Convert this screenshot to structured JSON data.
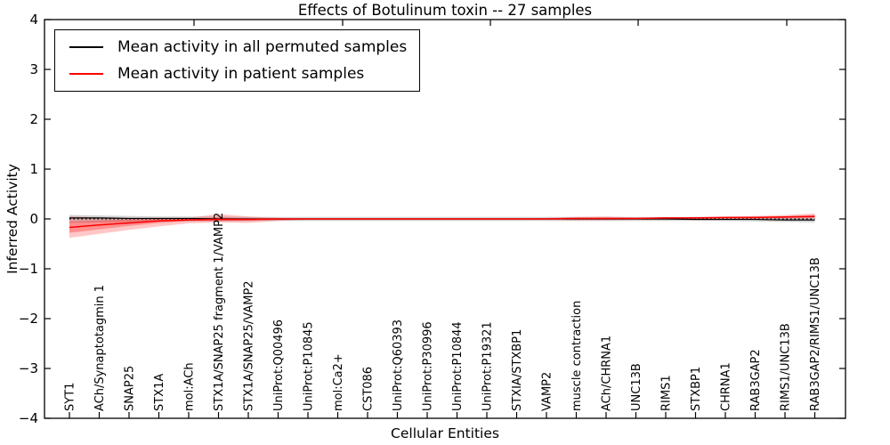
{
  "chart_data": {
    "type": "line",
    "title": "Effects of Botulinum toxin -- 27 samples",
    "xlabel": "Cellular Entities",
    "ylabel": "Inferred Activity",
    "ylim": [
      -4,
      4
    ],
    "yticks": [
      4,
      3,
      2,
      1,
      0,
      -1,
      -2,
      -3,
      -4
    ],
    "grid": false,
    "legend_position": "upper left",
    "categories": [
      "SYT1",
      "ACh/Synaptotagmin 1",
      "SNAP25",
      "STX1A",
      "mol:ACh",
      "STX1A/SNAP25 fragment 1/VAMP2",
      "STX1A/SNAP25/VAMP2",
      "UniProt:Q00496",
      "UniProt:P10845",
      "mol:Ca2+",
      "CST086",
      "UniProt:Q60393",
      "UniProt:P30996",
      "UniProt:P10844",
      "UniProt:P19321",
      "STXIA/STXBP1",
      "VAMP2",
      "muscle contraction",
      "ACh/CHRNA1",
      "UNC13B",
      "RIMS1",
      "STXBP1",
      "CHRNA1",
      "RAB3GAP2",
      "RIMS1/UNC13B",
      "RAB3GAP2/RIMS1/UNC13B"
    ],
    "series": [
      {
        "name": "Mean activity in all permuted samples",
        "color": "#000000",
        "style": "solid",
        "values": [
          0.02,
          0.02,
          0.01,
          0.01,
          0.01,
          0.0,
          0.0,
          0.0,
          0.0,
          0.0,
          0.0,
          0.0,
          0.0,
          0.0,
          0.0,
          0.0,
          0.0,
          0.0,
          0.0,
          0.0,
          0.0,
          -0.01,
          -0.01,
          -0.01,
          -0.02,
          -0.02
        ]
      },
      {
        "name": "Mean activity in patient samples",
        "color": "#ff0000",
        "style": "solid",
        "values": [
          -0.17,
          -0.12,
          -0.08,
          -0.04,
          -0.02,
          -0.01,
          -0.01,
          0.0,
          0.0,
          0.0,
          0.0,
          0.0,
          0.0,
          0.0,
          0.0,
          0.0,
          0.0,
          0.01,
          0.01,
          0.01,
          0.02,
          0.02,
          0.03,
          0.03,
          0.04,
          0.05
        ]
      },
      {
        "name": "zero-reference-line",
        "color": "#000000",
        "style": "dotted",
        "values": [
          0,
          0,
          0,
          0,
          0,
          0,
          0,
          0,
          0,
          0,
          0,
          0,
          0,
          0,
          0,
          0,
          0,
          0,
          0,
          0,
          0,
          0,
          0,
          0,
          0,
          0
        ]
      }
    ],
    "bands": [
      {
        "name": "permuted-samples-band",
        "color": "rgba(110,110,110,0.30)",
        "upper": [
          0.08,
          0.07,
          0.06,
          0.05,
          0.05,
          0.05,
          0.04,
          0.04,
          0.04,
          0.04,
          0.04,
          0.04,
          0.04,
          0.04,
          0.04,
          0.04,
          0.04,
          0.04,
          0.04,
          0.04,
          0.04,
          0.04,
          0.04,
          0.05,
          0.05,
          0.05
        ],
        "lower": [
          -0.08,
          -0.07,
          -0.06,
          -0.05,
          -0.05,
          -0.05,
          -0.04,
          -0.04,
          -0.04,
          -0.04,
          -0.04,
          -0.04,
          -0.04,
          -0.04,
          -0.04,
          -0.04,
          -0.04,
          -0.04,
          -0.04,
          -0.04,
          -0.04,
          -0.04,
          -0.04,
          -0.05,
          -0.06,
          -0.07
        ],
        "n_samples": 27
      },
      {
        "name": "patient-samples-band-outer",
        "color": "rgba(255,0,0,0.22)",
        "upper": [
          0.05,
          0.03,
          0.02,
          0.02,
          0.02,
          0.1,
          0.05,
          0.02,
          0.01,
          0.01,
          0.01,
          0.01,
          0.01,
          0.01,
          0.01,
          0.01,
          0.02,
          0.04,
          0.05,
          0.03,
          0.03,
          0.04,
          0.05,
          0.06,
          0.08,
          0.11
        ],
        "lower": [
          -0.38,
          -0.3,
          -0.22,
          -0.15,
          -0.09,
          -0.07,
          -0.08,
          -0.04,
          -0.02,
          -0.02,
          -0.02,
          -0.02,
          -0.02,
          -0.02,
          -0.02,
          -0.02,
          -0.02,
          -0.03,
          -0.03,
          -0.02,
          -0.02,
          -0.01,
          -0.01,
          0.0,
          0.0,
          0.01
        ]
      },
      {
        "name": "patient-samples-band-inner",
        "color": "rgba(255,0,0,0.28)",
        "upper": [
          -0.05,
          -0.03,
          -0.01,
          0.0,
          0.0,
          0.03,
          0.01,
          0.01,
          0.0,
          0.0,
          0.0,
          0.0,
          0.0,
          0.0,
          0.0,
          0.0,
          0.01,
          0.02,
          0.02,
          0.02,
          0.02,
          0.03,
          0.03,
          0.04,
          0.05,
          0.08
        ],
        "lower": [
          -0.28,
          -0.21,
          -0.14,
          -0.08,
          -0.04,
          -0.04,
          -0.04,
          -0.02,
          -0.01,
          -0.01,
          -0.01,
          -0.01,
          -0.01,
          -0.01,
          -0.01,
          -0.01,
          -0.01,
          -0.01,
          -0.01,
          -0.01,
          0.0,
          0.0,
          0.01,
          0.01,
          0.02,
          0.03
        ]
      }
    ],
    "legend_entries": [
      "Mean activity in all permuted samples",
      "Mean activity in patient samples"
    ]
  }
}
